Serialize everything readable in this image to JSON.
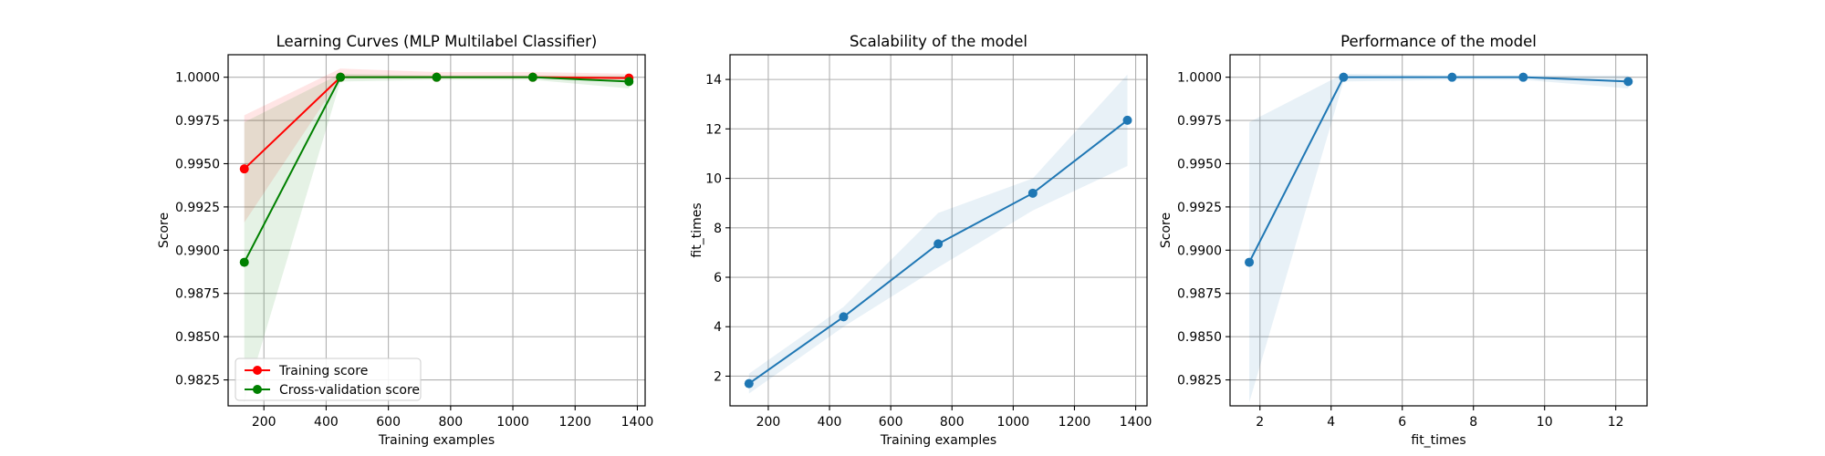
{
  "chart_data": [
    {
      "type": "line",
      "title": "Learning Curves (MLP Multilabel Classifier)",
      "xlabel": "Training examples",
      "ylabel": "Score",
      "xlim": [
        85,
        1425
      ],
      "ylim": [
        0.981,
        1.0013
      ],
      "xticks": [
        200,
        400,
        600,
        800,
        1000,
        1200,
        1400
      ],
      "xtick_labels": [
        "200",
        "400",
        "600",
        "800",
        "1000",
        "1200",
        "1400"
      ],
      "yticks": [
        0.9825,
        0.985,
        0.9875,
        0.99,
        0.9925,
        0.995,
        0.9975,
        1.0
      ],
      "ytick_labels": [
        "0.9825",
        "0.9850",
        "0.9875",
        "0.9900",
        "0.9925",
        "0.9950",
        "0.9975",
        "1.0000"
      ],
      "grid": true,
      "legend": "lower-left",
      "series": [
        {
          "name": "Training score",
          "color": "#ff0000",
          "x": [
            137,
            446,
            755,
            1064,
            1373
          ],
          "y": [
            0.9947,
            1.0,
            1.0,
            1.0,
            0.99995
          ],
          "band_low": [
            0.9916,
            0.99995,
            0.99995,
            0.99995,
            0.99985
          ],
          "band_high": [
            0.9978,
            1.0005,
            1.0003,
            1.0003,
            1.0002
          ]
        },
        {
          "name": "Cross-validation score",
          "color": "#008000",
          "x": [
            137,
            446,
            755,
            1064,
            1373
          ],
          "y": [
            0.9893,
            1.0,
            1.0,
            1.0,
            0.99975
          ],
          "band_low": [
            0.9812,
            0.99975,
            0.99985,
            0.99985,
            0.99935
          ],
          "band_high": [
            0.9974,
            1.0002,
            1.0001,
            1.0001,
            1.0001
          ]
        }
      ]
    },
    {
      "type": "line",
      "title": "Scalability of the model",
      "xlabel": "Training examples",
      "ylabel": "fit_times",
      "xlim": [
        75,
        1437
      ],
      "ylim": [
        0.8,
        15.0
      ],
      "xticks": [
        200,
        400,
        600,
        800,
        1000,
        1200,
        1400
      ],
      "xtick_labels": [
        "200",
        "400",
        "600",
        "800",
        "1000",
        "1200",
        "1400"
      ],
      "yticks": [
        2,
        4,
        6,
        8,
        10,
        12,
        14
      ],
      "ytick_labels": [
        "2",
        "4",
        "6",
        "8",
        "10",
        "12",
        "14"
      ],
      "grid": true,
      "series": [
        {
          "color": "#1f77b4",
          "x": [
            137,
            446,
            755,
            1064,
            1373
          ],
          "y": [
            1.7,
            4.4,
            7.35,
            9.4,
            12.35
          ],
          "band_low": [
            1.3,
            4.0,
            6.4,
            8.7,
            10.5
          ],
          "band_high": [
            2.1,
            4.8,
            8.6,
            10.0,
            14.2
          ]
        }
      ]
    },
    {
      "type": "line",
      "title": "Performance of the model",
      "xlabel": "fit_times",
      "ylabel": "Score",
      "xlim": [
        1.16,
        12.88
      ],
      "ylim": [
        0.981,
        1.0013
      ],
      "xticks": [
        2,
        4,
        6,
        8,
        10,
        12
      ],
      "xtick_labels": [
        "2",
        "4",
        "6",
        "8",
        "10",
        "12"
      ],
      "yticks": [
        0.9825,
        0.985,
        0.9875,
        0.99,
        0.9925,
        0.995,
        0.9975,
        1.0
      ],
      "ytick_labels": [
        "0.9825",
        "0.9850",
        "0.9875",
        "0.9900",
        "0.9925",
        "0.9950",
        "0.9975",
        "1.0000"
      ],
      "grid": true,
      "series": [
        {
          "color": "#1f77b4",
          "x": [
            1.7,
            4.35,
            7.4,
            9.4,
            12.35
          ],
          "y": [
            0.9893,
            1.0,
            1.0,
            1.0,
            0.99975
          ],
          "band_low": [
            0.9812,
            0.99975,
            0.99985,
            0.99985,
            0.99935
          ],
          "band_high": [
            0.9974,
            1.0002,
            1.0001,
            1.0001,
            1.0001
          ]
        }
      ]
    }
  ]
}
